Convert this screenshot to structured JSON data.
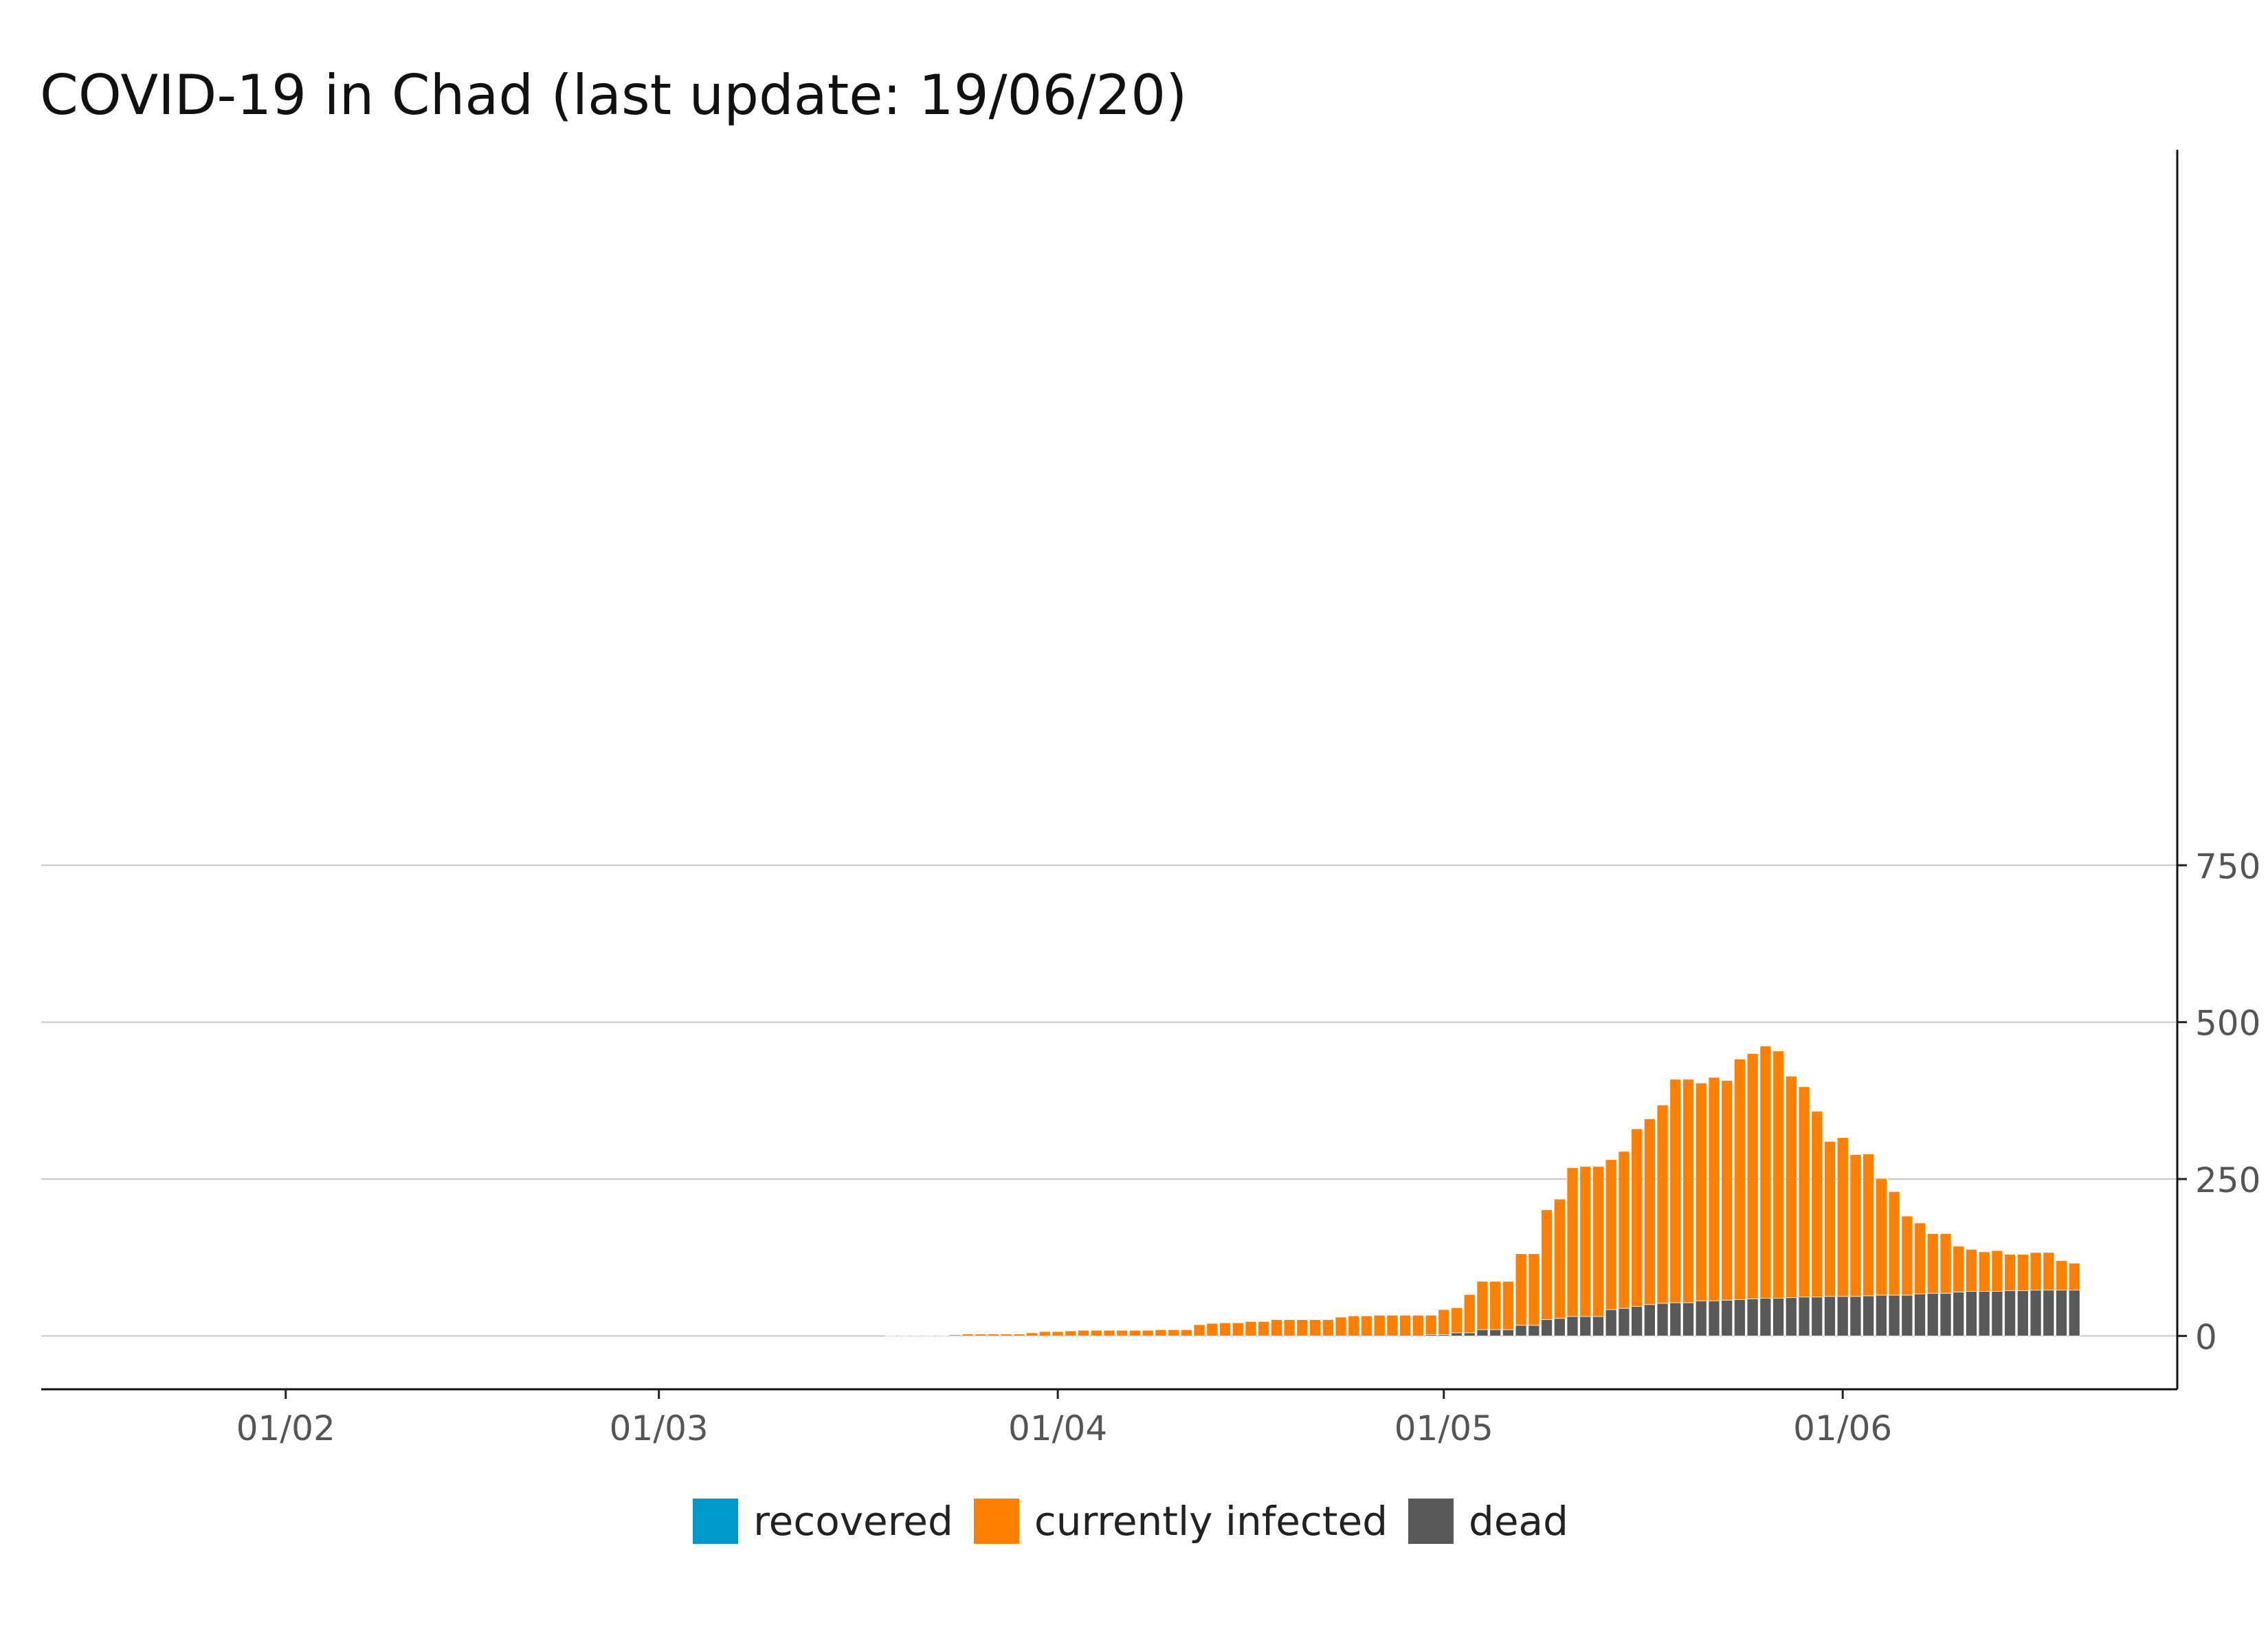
{
  "chart_data": {
    "type": "bar",
    "stacked": true,
    "title": "COVID-19 in Chad (last update: 19/06/20)",
    "xlabel": "",
    "ylabel": "",
    "x_range": [
      "2020-01-13",
      "2020-06-27"
    ],
    "ylim": [
      -85,
      1890
    ],
    "y_axis_position": "right",
    "y_ticks": [
      {
        "value": 0,
        "label": "0"
      },
      {
        "value": 250,
        "label": "250"
      },
      {
        "value": 500,
        "label": "500"
      },
      {
        "value": 750,
        "label": "750"
      }
    ],
    "x_ticks": [
      {
        "date": "2020-02-01",
        "label": "01/02"
      },
      {
        "date": "2020-03-01",
        "label": "01/03"
      },
      {
        "date": "2020-04-01",
        "label": "01/04"
      },
      {
        "date": "2020-05-01",
        "label": "01/05"
      },
      {
        "date": "2020-06-01",
        "label": "01/06"
      }
    ],
    "grid": {
      "horizontal": true,
      "vertical": false
    },
    "legend": {
      "position": "bottom"
    },
    "series": [
      {
        "name": "recovered",
        "color": "#0099cc"
      },
      {
        "name": "currently infected",
        "color": "#ff7f00"
      },
      {
        "name": "dead",
        "color": "#595959"
      }
    ],
    "x": [
      "2020-03-19",
      "2020-03-20",
      "2020-03-21",
      "2020-03-22",
      "2020-03-23",
      "2020-03-24",
      "2020-03-25",
      "2020-03-26",
      "2020-03-27",
      "2020-03-28",
      "2020-03-29",
      "2020-03-30",
      "2020-03-31",
      "2020-04-01",
      "2020-04-02",
      "2020-04-03",
      "2020-04-04",
      "2020-04-05",
      "2020-04-06",
      "2020-04-07",
      "2020-04-08",
      "2020-04-09",
      "2020-04-10",
      "2020-04-11",
      "2020-04-12",
      "2020-04-13",
      "2020-04-14",
      "2020-04-15",
      "2020-04-16",
      "2020-04-17",
      "2020-04-18",
      "2020-04-19",
      "2020-04-20",
      "2020-04-21",
      "2020-04-22",
      "2020-04-23",
      "2020-04-24",
      "2020-04-25",
      "2020-04-26",
      "2020-04-27",
      "2020-04-28",
      "2020-04-29",
      "2020-04-30",
      "2020-05-01",
      "2020-05-02",
      "2020-05-03",
      "2020-05-04",
      "2020-05-05",
      "2020-05-06",
      "2020-05-07",
      "2020-05-08",
      "2020-05-09",
      "2020-05-10",
      "2020-05-11",
      "2020-05-12",
      "2020-05-13",
      "2020-05-14",
      "2020-05-15",
      "2020-05-16",
      "2020-05-17",
      "2020-05-18",
      "2020-05-19",
      "2020-05-20",
      "2020-05-21",
      "2020-05-22",
      "2020-05-23",
      "2020-05-24",
      "2020-05-25",
      "2020-05-26",
      "2020-05-27",
      "2020-05-28",
      "2020-05-29",
      "2020-05-30",
      "2020-05-31",
      "2020-06-01",
      "2020-06-02",
      "2020-06-03",
      "2020-06-04",
      "2020-06-05",
      "2020-06-06",
      "2020-06-07",
      "2020-06-08",
      "2020-06-09",
      "2020-06-10",
      "2020-06-11",
      "2020-06-12",
      "2020-06-13",
      "2020-06-14",
      "2020-06-15",
      "2020-06-16",
      "2020-06-17",
      "2020-06-18",
      "2020-06-19"
    ],
    "dead": [
      0,
      0,
      0,
      0,
      0,
      0,
      0,
      0,
      0,
      0,
      0,
      0,
      0,
      0,
      0,
      0,
      0,
      0,
      0,
      0,
      0,
      0,
      0,
      0,
      0,
      0,
      0,
      0,
      0,
      0,
      0,
      0,
      0,
      0,
      0,
      0,
      0,
      0,
      0,
      0,
      0,
      0,
      2,
      2,
      5,
      5,
      10,
      10,
      10,
      17,
      17,
      26,
      28,
      31,
      31,
      31,
      42,
      44,
      47,
      50,
      52,
      53,
      53,
      56,
      56,
      57,
      58,
      59,
      60,
      60,
      61,
      62,
      62,
      63,
      63,
      63,
      64,
      65,
      65,
      65,
      67,
      68,
      68,
      70,
      71,
      71,
      71,
      72,
      72,
      73,
      73,
      73,
      73
    ],
    "infected": [
      1,
      1,
      1,
      1,
      1,
      2,
      3,
      3,
      3,
      3,
      3,
      5,
      7,
      7,
      8,
      9,
      9,
      9,
      9,
      9,
      9,
      10,
      10,
      10,
      18,
      20,
      21,
      21,
      23,
      23,
      26,
      26,
      26,
      26,
      26,
      30,
      32,
      32,
      33,
      33,
      33,
      33,
      31,
      40,
      40,
      61,
      77,
      77,
      77,
      114,
      114,
      175,
      190,
      237,
      239,
      239,
      239,
      250,
      283,
      296,
      316,
      356,
      356,
      347,
      356,
      350,
      383,
      391,
      402,
      394,
      353,
      335,
      296,
      247,
      253,
      226,
      226,
      186,
      165,
      126,
      113,
      95,
      95,
      73,
      67,
      63,
      65,
      58,
      58,
      60,
      60,
      47,
      43
    ],
    "recovered": [
      0,
      0,
      0,
      0,
      0,
      0,
      0,
      0,
      0,
      0,
      0,
      0,
      0,
      0,
      0,
      0,
      0,
      0,
      0,
      0,
      0,
      0,
      0,
      0,
      0,
      0,
      0,
      0,
      0,
      0,
      0,
      0,
      0,
      0,
      0,
      0,
      0,
      0,
      0,
      0,
      0,
      0,
      0,
      0,
      0,
      0,
      0,
      0,
      0,
      0,
      0,
      0,
      0,
      0,
      0,
      0,
      0,
      0,
      0,
      0,
      0,
      0,
      0,
      0,
      0,
      0,
      0,
      0,
      0,
      0,
      0,
      0,
      0,
      0,
      0,
      0,
      0,
      0,
      0,
      0,
      0,
      0,
      0,
      0,
      0,
      0,
      0,
      0,
      0,
      0,
      0,
      0,
      0
    ]
  }
}
